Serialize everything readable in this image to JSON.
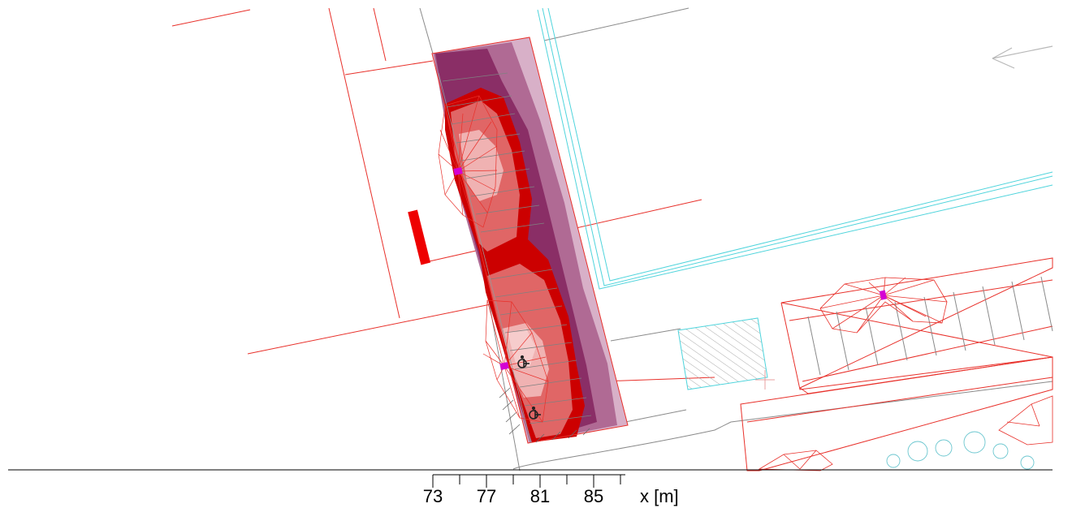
{
  "scale_bar": {
    "ticks": [
      "73",
      "77",
      "81",
      "85"
    ],
    "unit_label": "x [m]"
  },
  "colors": {
    "cad_red": "#e8302a",
    "cad_cyan": "#4fd4dc",
    "cad_grey": "#8a8a8a",
    "iso_darkred": "#cc0000",
    "iso_red": "#e06666",
    "iso_pink": "#f0b2b2",
    "iso_plum": "#8a2e66",
    "iso_mauve": "#b06a94",
    "iso_lilac": "#d8b0c8",
    "luminaire": "#d400d4"
  },
  "icons": [
    "accessible-parking-icon",
    "accessible-parking-icon"
  ]
}
